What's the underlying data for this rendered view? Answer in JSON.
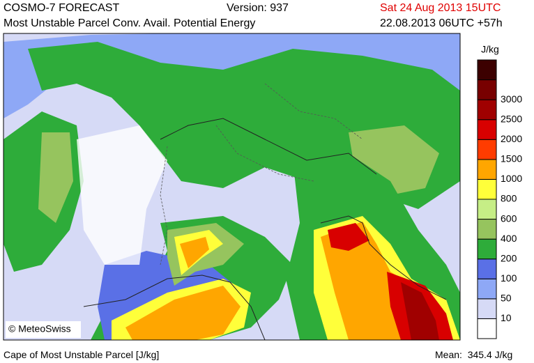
{
  "header": {
    "model": "COSMO-7 FORECAST",
    "version": "Version: 937",
    "valid_time": "Sat 24 Aug 2013 15UTC",
    "field": "Most Unstable Parcel Conv. Avail. Potential Energy",
    "run": "22.08.2013 06UTC +57h"
  },
  "legend": {
    "unit": "J/kg",
    "levels": [
      10,
      50,
      100,
      200,
      400,
      600,
      800,
      1000,
      1500,
      2000,
      2500,
      3000
    ],
    "colors": [
      "#ffffff",
      "#d6daf6",
      "#8ea8f6",
      "#5a70e6",
      "#2eac3a",
      "#96c45e",
      "#c6ee86",
      "#ffff3a",
      "#ffa600",
      "#ff3c00",
      "#d80000",
      "#a00000",
      "#780000",
      "#3c0000"
    ]
  },
  "map": {
    "credit": "© MeteoSwiss"
  },
  "footer": {
    "caption": "Cape of Most Unstable Parcel [J/kg]",
    "mean": "Mean:  345.4 J/kg"
  }
}
